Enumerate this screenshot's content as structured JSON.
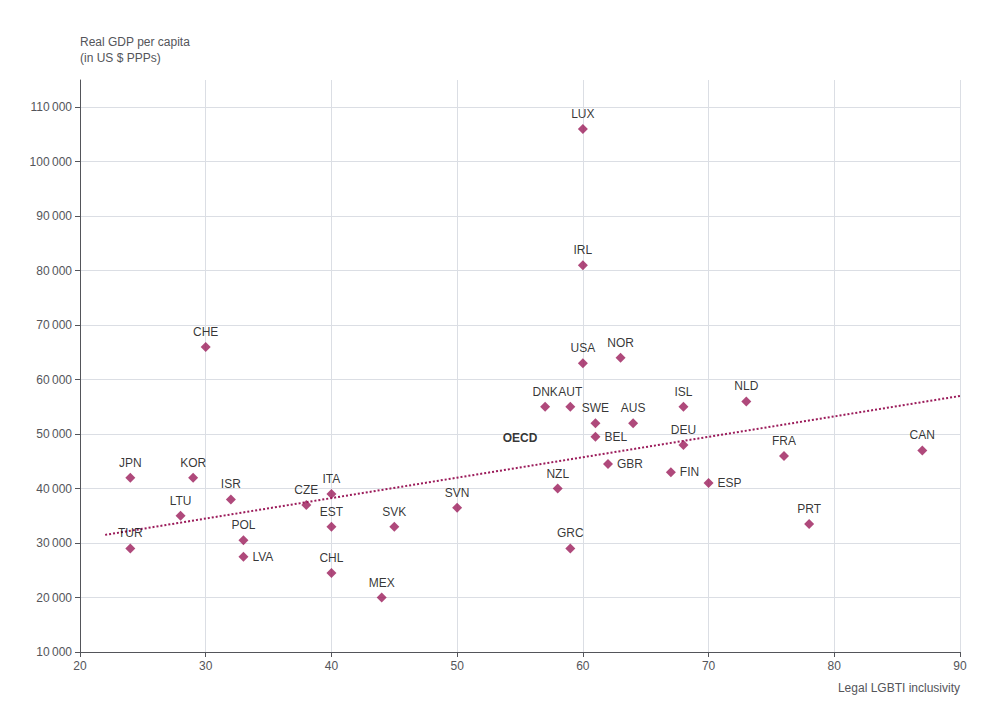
{
  "chart_data": {
    "type": "scatter",
    "xlabel": "Legal LGBTI inclusivity",
    "ylabel": [
      "Real GDP per capita",
      "(in US $ PPPs)"
    ],
    "series": [
      {
        "type": "scatter",
        "marker": "diamond",
        "color": "#9B1B5A",
        "labels": [
          "LUX",
          "IRL",
          "CHE",
          "NOR",
          "USA",
          "DNK",
          "AUT",
          "ISL",
          "NLD",
          "SWE",
          "AUS",
          "BEL",
          "GBR",
          "DEU",
          "FIN",
          "ESP",
          "FRA",
          "PRT",
          "CAN",
          "JPN",
          "KOR",
          "ISR",
          "ITA",
          "SVN",
          "CZE",
          "SVK",
          "NZL",
          "GRC",
          "TUR",
          "LTU",
          "POL",
          "EST",
          "LVA",
          "CHL",
          "MEX"
        ],
        "x": [
          60,
          60,
          30,
          63,
          60,
          57,
          59,
          68,
          73,
          61,
          64,
          61,
          62,
          68,
          67,
          70,
          76,
          78,
          87,
          24,
          29,
          32,
          40,
          50,
          38,
          45,
          58,
          59,
          24,
          28,
          33,
          40,
          33,
          40,
          44
        ],
        "values": [
          106000,
          81000,
          66000,
          64000,
          63000,
          55000,
          55000,
          55000,
          56000,
          52000,
          52000,
          49500,
          44500,
          48000,
          43000,
          41000,
          46000,
          33500,
          47000,
          42000,
          42000,
          38000,
          39000,
          36500,
          37000,
          33000,
          40000,
          29000,
          29000,
          35000,
          30500,
          33000,
          27500,
          24500,
          20000
        ]
      },
      {
        "type": "scatter",
        "marker": "none",
        "labels": [
          "OECD"
        ],
        "x": [
          55
        ],
        "values": [
          47500
        ]
      },
      {
        "type": "line",
        "line_style": "dotted",
        "color": "#9B1B5A",
        "x": [
          22,
          90
        ],
        "values": [
          31500,
          57000
        ]
      }
    ],
    "xlim": [
      20,
      90
    ],
    "ylim": [
      10000,
      115000
    ],
    "xticks": [
      20,
      30,
      40,
      50,
      60,
      70,
      80,
      90
    ],
    "yticks": [
      {
        "value": 10000,
        "label": "10 000"
      },
      {
        "value": 20000,
        "label": "20 000"
      },
      {
        "value": 30000,
        "label": "30 000"
      },
      {
        "value": 40000,
        "label": "40 000"
      },
      {
        "value": 50000,
        "label": "50 000"
      },
      {
        "value": 60000,
        "label": "60 000"
      },
      {
        "value": 70000,
        "label": "70 000"
      },
      {
        "value": 80000,
        "label": "80 000"
      },
      {
        "value": 90000,
        "label": "90 000"
      },
      {
        "value": 100000,
        "label": "100 000"
      },
      {
        "value": 110000,
        "label": "110 000"
      }
    ],
    "grid": true
  }
}
